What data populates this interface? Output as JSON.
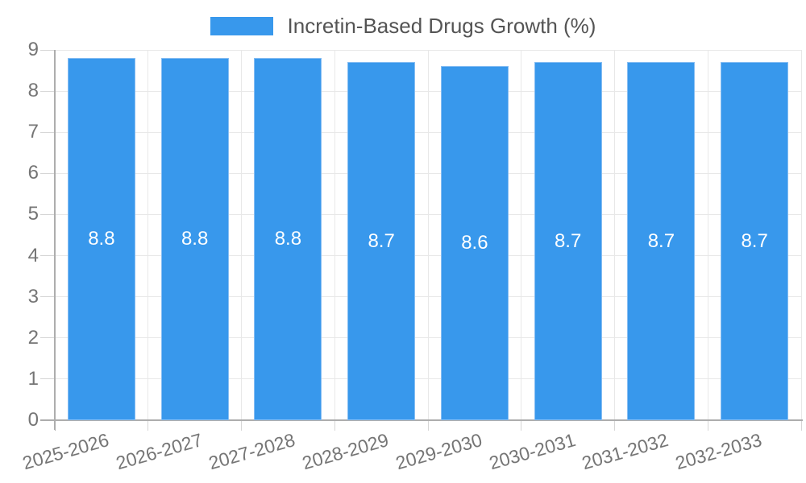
{
  "legend": {
    "label": "Incretin-Based Drugs Growth (%)"
  },
  "chart_data": {
    "type": "bar",
    "title": "Incretin-Based Drugs Growth (%)",
    "categories": [
      "2025-2026",
      "2026-2027",
      "2027-2028",
      "2028-2029",
      "2029-2030",
      "2030-2031",
      "2031-2032",
      "2032-2033"
    ],
    "series": [
      {
        "name": "Incretin-Based Drugs Growth (%)",
        "values": [
          8.8,
          8.8,
          8.8,
          8.7,
          8.6,
          8.7,
          8.7,
          8.7
        ]
      }
    ],
    "value_labels": [
      "8.8",
      "8.8",
      "8.8",
      "8.7",
      "8.6",
      "8.7",
      "8.7",
      "8.7"
    ],
    "xlabel": "",
    "ylabel": "",
    "ylim": [
      0,
      9
    ],
    "yticks": [
      0,
      1,
      2,
      3,
      4,
      5,
      6,
      7,
      8,
      9
    ],
    "grid": true,
    "legend_position": "top",
    "x_label_rotation_deg": -16,
    "colors": {
      "bar_fill": "#3898EC",
      "bar_border": "#87BEF3",
      "value_label": "#FFFFFF",
      "grid_line": "#E8E8E8",
      "tick_line": "#D6D6D6",
      "axis_line": "#ADADAD",
      "tick_label": "#757575",
      "legend_text": "#545454",
      "background": "#FFFFFF"
    }
  }
}
